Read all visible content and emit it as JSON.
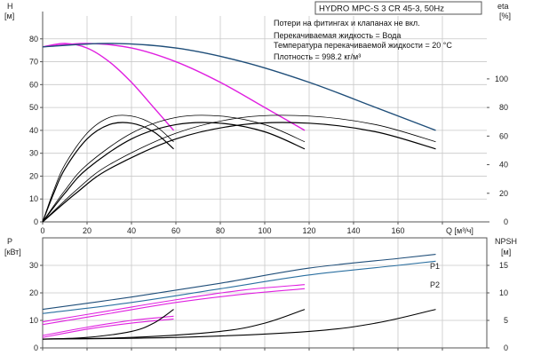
{
  "colors": {
    "head_pump": "#1f4e79",
    "head_magenta": "#e020e0",
    "efficiency": "#000000",
    "power_p1": "#1f4e79",
    "power_p2": "#2a6fa0",
    "power_magenta": "#e020e0",
    "npsh": "#000000"
  },
  "chart_data": [
    {
      "id": "head-efficiency",
      "type": "line",
      "title": "HYDRO MPC-S 3 CR 45-3, 50Hz",
      "notes": [
        "Потери на фитингах и клапанах не вкл.",
        "Перекачиваемая жидкость = Вода",
        "Температура перекачиваемой жидкости = 20 °C",
        "Плотность = 998.2 кг/м³"
      ],
      "ylabel": "H",
      "ylabel_unit": "[м]",
      "y2label": "eta",
      "y2label_unit": "[%]",
      "xlabel": "Q [м³/ч]",
      "xlim": [
        0,
        200
      ],
      "ylim": [
        0,
        90
      ],
      "y2lim": [
        0,
        144
      ],
      "x_ticks": [
        0,
        20,
        40,
        60,
        80,
        100,
        120,
        140,
        160,
        180
      ],
      "x_ticks_text": [
        "0",
        "20",
        "40",
        "60",
        "80",
        "100",
        "120",
        "140",
        "160"
      ],
      "y_ticks": [
        0,
        10,
        20,
        30,
        40,
        50,
        60,
        70,
        80
      ],
      "y2_ticks": [
        0,
        20,
        40,
        60,
        80,
        100
      ],
      "grid": true,
      "series": [
        {
          "kind": "head",
          "color_key": "head_magenta",
          "x": [
            0,
            10,
            20,
            30,
            40,
            50,
            59
          ],
          "y": [
            76.5,
            78,
            76,
            70,
            61,
            50,
            40
          ]
        },
        {
          "kind": "head",
          "color_key": "head_magenta",
          "x": [
            0,
            20,
            40,
            60,
            80,
            100,
            118
          ],
          "y": [
            76.5,
            78,
            76,
            70,
            61,
            50,
            40
          ]
        },
        {
          "kind": "head",
          "color_key": "head_pump",
          "x": [
            0,
            30,
            60,
            90,
            120,
            150,
            177
          ],
          "y": [
            76.5,
            78,
            76,
            70,
            61,
            50,
            40
          ]
        },
        {
          "kind": "eta",
          "color_key": "efficiency",
          "x": [
            0,
            5,
            10,
            20,
            30,
            40,
            50,
            59
          ],
          "y": [
            0,
            22,
            40,
            62,
            73,
            74,
            68,
            56
          ]
        },
        {
          "kind": "eta",
          "color_key": "efficiency",
          "x": [
            0,
            5,
            10,
            20,
            30,
            40,
            50,
            59
          ],
          "y": [
            0,
            20,
            37,
            58,
            68,
            69,
            63,
            51
          ]
        },
        {
          "kind": "eta",
          "color_key": "efficiency",
          "x": [
            0,
            10,
            20,
            40,
            60,
            80,
            100,
            118
          ],
          "y": [
            0,
            22,
            40,
            62,
            73,
            74,
            68,
            56
          ]
        },
        {
          "kind": "eta",
          "color_key": "efficiency",
          "x": [
            0,
            10,
            20,
            40,
            60,
            80,
            100,
            118
          ],
          "y": [
            0,
            20,
            37,
            58,
            68,
            69,
            63,
            51
          ]
        },
        {
          "kind": "eta",
          "color_key": "efficiency",
          "x": [
            0,
            15,
            30,
            60,
            90,
            120,
            150,
            177
          ],
          "y": [
            0,
            22,
            40,
            62,
            73,
            74,
            68,
            56
          ]
        },
        {
          "kind": "eta",
          "color_key": "efficiency",
          "x": [
            0,
            15,
            30,
            60,
            90,
            120,
            150,
            177
          ],
          "y": [
            0,
            20,
            37,
            58,
            68,
            69,
            63,
            51
          ]
        }
      ]
    },
    {
      "id": "power-npsh",
      "type": "line",
      "ylabel": "P",
      "ylabel_unit": "[кВт]",
      "y2label": "NPSH",
      "y2label_unit": "[м]",
      "xlim": [
        0,
        200
      ],
      "ylim": [
        0,
        40
      ],
      "y2lim": [
        0,
        20
      ],
      "x_ticks": [
        0,
        20,
        40,
        60,
        80,
        100,
        120,
        140,
        160,
        180
      ],
      "y_ticks": [
        0,
        10,
        20,
        30
      ],
      "y2_ticks": [
        0,
        5,
        10,
        15
      ],
      "grid": true,
      "series_labels": [
        "P1",
        "P2"
      ],
      "series": [
        {
          "kind": "power",
          "color_key": "power_p1",
          "x": [
            0,
            40,
            80,
            120,
            160,
            177
          ],
          "y": [
            14,
            18.5,
            23.5,
            29,
            32.5,
            34
          ]
        },
        {
          "kind": "power",
          "color_key": "power_p2",
          "x": [
            0,
            40,
            80,
            120,
            160,
            177
          ],
          "y": [
            12.5,
            16.5,
            21.5,
            26.5,
            30,
            31.5
          ]
        },
        {
          "kind": "power",
          "color_key": "power_magenta",
          "x": [
            0,
            30,
            60,
            90,
            118
          ],
          "y": [
            9.5,
            13.5,
            17.5,
            21,
            23
          ]
        },
        {
          "kind": "power",
          "color_key": "power_magenta",
          "x": [
            0,
            30,
            60,
            90,
            118
          ],
          "y": [
            8.5,
            12.5,
            16.5,
            19.5,
            21.5
          ]
        },
        {
          "kind": "power",
          "color_key": "power_magenta",
          "x": [
            0,
            20,
            40,
            59
          ],
          "y": [
            4.5,
            7.5,
            10,
            11.5
          ]
        },
        {
          "kind": "power",
          "color_key": "power_magenta",
          "x": [
            0,
            20,
            40,
            59
          ],
          "y": [
            3.8,
            6.8,
            9,
            10.5
          ]
        },
        {
          "kind": "npsh",
          "color_key": "npsh",
          "x": [
            0,
            20,
            40,
            50,
            59
          ],
          "y": [
            1.6,
            1.9,
            3,
            4.5,
            7
          ]
        },
        {
          "kind": "npsh",
          "color_key": "npsh",
          "x": [
            0,
            40,
            80,
            100,
            118
          ],
          "y": [
            1.6,
            1.9,
            3,
            4.5,
            7
          ]
        },
        {
          "kind": "npsh",
          "color_key": "npsh",
          "x": [
            0,
            60,
            120,
            150,
            177
          ],
          "y": [
            1.6,
            1.9,
            3,
            4.5,
            7
          ]
        }
      ]
    }
  ]
}
